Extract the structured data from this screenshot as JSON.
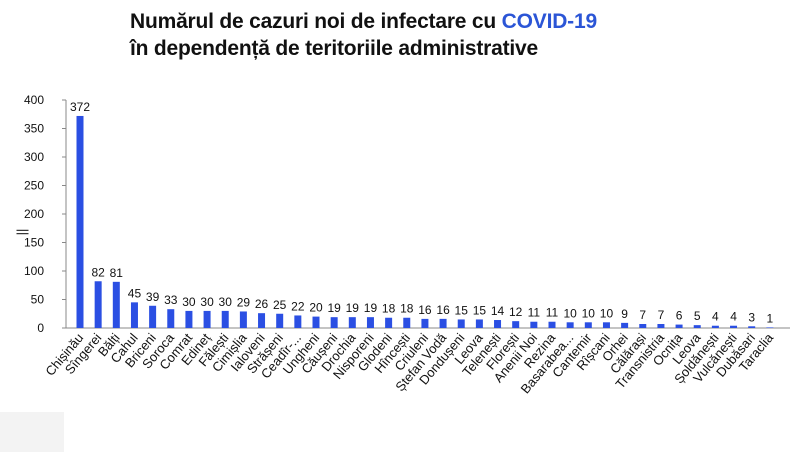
{
  "title": {
    "part1": "Numărul de cazuri noi de infectare cu ",
    "highlight": "COVID-19",
    "line2": "în dependență de teritoriile administrative"
  },
  "colors": {
    "bar": "#2b4fe3",
    "highlight": "#2b55d6",
    "axis": "#888888",
    "text": "#111111"
  },
  "chart_data": {
    "type": "bar",
    "title": "Numărul de cazuri noi de infectare cu COVID-19 în dependență de teritoriile administrative",
    "ylim": [
      0,
      400
    ],
    "yticks": [
      0,
      50,
      100,
      150,
      200,
      250,
      300,
      350,
      400
    ],
    "ylabel_mark": "||",
    "grid": false,
    "data_labels": true,
    "categories": [
      "Chișinău",
      "Sîngerei",
      "Bălți",
      "Cahul",
      "Briceni",
      "Soroca",
      "Comrat",
      "Edineț",
      "Fălești",
      "Cimișlia",
      "Ialoveni",
      "Strășeni",
      "Ceadîr-...",
      "Ungheni",
      "Căușeni",
      "Drochia",
      "Nisporeni",
      "Glodeni",
      "Hîncești",
      "Criuleni",
      "Ștefan Vodă",
      "Dondușeni",
      "Leova",
      "Telenești",
      "Florești",
      "Anenii Noi",
      "Rezina",
      "Basarabea...",
      "Cantemir",
      "Rîșcani",
      "Orhei",
      "Călărași",
      "Transnistria",
      "Ocnița",
      "Leova",
      "Șoldănești",
      "Vulcănești",
      "Dubăsari",
      "Taraclia"
    ],
    "values": [
      372,
      82,
      81,
      45,
      39,
      33,
      30,
      30,
      30,
      29,
      26,
      25,
      22,
      20,
      19,
      19,
      19,
      18,
      18,
      16,
      16,
      15,
      15,
      14,
      12,
      11,
      11,
      10,
      10,
      10,
      9,
      7,
      7,
      6,
      5,
      4,
      4,
      3,
      1
    ]
  }
}
